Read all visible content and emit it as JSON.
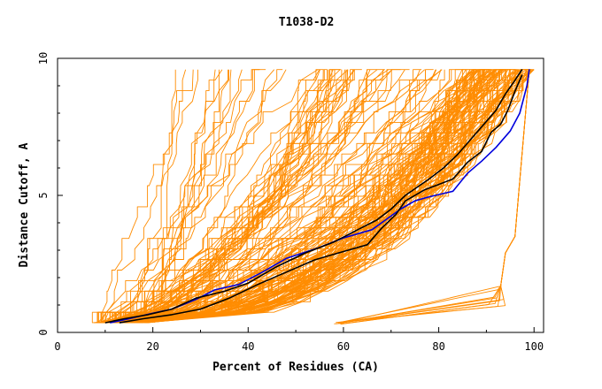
{
  "chart_data": {
    "type": "line",
    "title": "T1038-D2",
    "xlabel": "Percent of Residues (CA)",
    "ylabel": "Distance Cutoff, A",
    "xlim": [
      0,
      102
    ],
    "ylim": [
      0,
      10
    ],
    "xticks": [
      0,
      20,
      40,
      60,
      80,
      100
    ],
    "yticks": [
      0,
      5,
      10
    ],
    "grid": false,
    "legend": "none",
    "colors": {
      "background_series": "#ff8c00",
      "highlight_blue": "#0000dd",
      "highlight_black": "#000000",
      "axes": "#000000"
    },
    "series": [
      {
        "color": "blue",
        "x": [
          11,
          15,
          20,
          24,
          29,
          33,
          38,
          43,
          48,
          55,
          60,
          66,
          72,
          75,
          78,
          83,
          86,
          89,
          92,
          95,
          97,
          98.5,
          99
        ],
        "y": [
          0.35,
          0.5,
          0.7,
          0.85,
          1.2,
          1.55,
          1.75,
          2.2,
          2.7,
          3.1,
          3.45,
          3.75,
          4.5,
          4.8,
          4.95,
          5.15,
          5.8,
          6.25,
          6.75,
          7.35,
          8.0,
          9.0,
          9.6
        ]
      },
      {
        "color": "black",
        "x": [
          10,
          14,
          19,
          24,
          29,
          35,
          40,
          46,
          52,
          58,
          63,
          67,
          70,
          73,
          78,
          81,
          84,
          87,
          90,
          92,
          94,
          96,
          97.5
        ],
        "y": [
          0.35,
          0.5,
          0.65,
          0.85,
          1.25,
          1.5,
          1.8,
          2.4,
          2.9,
          3.3,
          3.75,
          4.1,
          4.5,
          5.0,
          5.6,
          6.0,
          6.5,
          7.1,
          7.7,
          8.1,
          8.7,
          9.2,
          9.6
        ]
      },
      {
        "color": "black",
        "x": [
          13,
          18,
          24,
          30,
          36,
          42,
          48,
          54,
          60,
          65,
          68,
          71,
          73,
          77,
          80,
          83,
          86,
          89,
          91,
          93,
          94.5,
          96,
          97.5
        ],
        "y": [
          0.35,
          0.5,
          0.65,
          0.85,
          1.25,
          1.75,
          2.2,
          2.65,
          2.95,
          3.2,
          3.8,
          4.3,
          4.8,
          5.2,
          5.4,
          5.6,
          6.2,
          6.6,
          7.3,
          7.6,
          8.1,
          8.8,
          9.4
        ]
      }
    ],
    "background_series_description_count": 180
  }
}
